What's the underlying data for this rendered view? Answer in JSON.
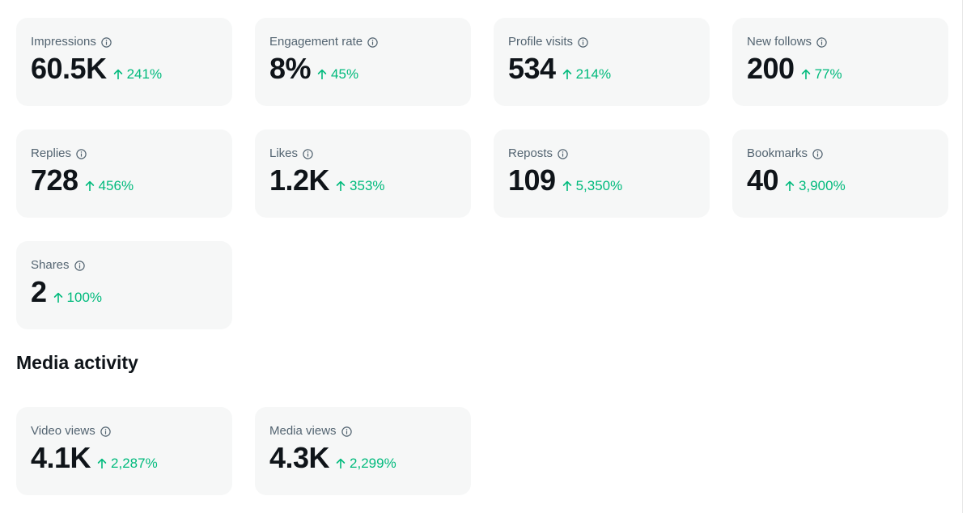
{
  "metrics": [
    {
      "label": "Impressions",
      "value": "60.5K",
      "change": "241%"
    },
    {
      "label": "Engagement rate",
      "value": "8%",
      "change": "45%"
    },
    {
      "label": "Profile visits",
      "value": "534",
      "change": "214%"
    },
    {
      "label": "New follows",
      "value": "200",
      "change": "77%"
    },
    {
      "label": "Replies",
      "value": "728",
      "change": "456%"
    },
    {
      "label": "Likes",
      "value": "1.2K",
      "change": "353%"
    },
    {
      "label": "Reposts",
      "value": "109",
      "change": "5,350%"
    },
    {
      "label": "Bookmarks",
      "value": "40",
      "change": "3,900%"
    },
    {
      "label": "Shares",
      "value": "2",
      "change": "100%"
    }
  ],
  "media_section": {
    "title": "Media activity",
    "metrics": [
      {
        "label": "Video views",
        "value": "4.1K",
        "change": "2,287%"
      },
      {
        "label": "Media views",
        "value": "4.3K",
        "change": "2,299%"
      }
    ]
  },
  "icons": {
    "info": "info-circle-icon",
    "change": "up-arrow-icon"
  },
  "colors": {
    "card_background": "#f6f7f7",
    "label": "#536471",
    "value": "#0f1419",
    "positive_change": "#00ba7c"
  }
}
